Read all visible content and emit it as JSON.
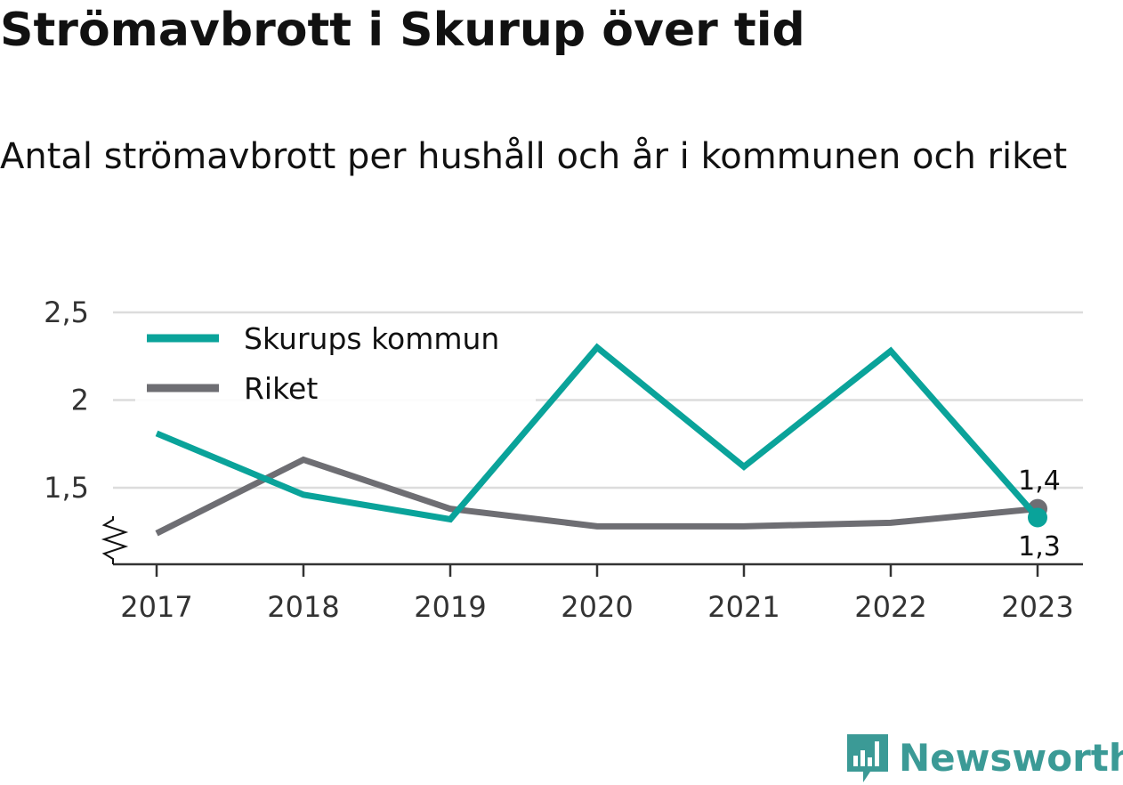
{
  "title": "Strömavbrott i Skurup över tid",
  "subtitle": "Antal strömavbrott per hushåll och år i kommunen och riket",
  "brand": {
    "name": "Newsworthy",
    "color": "#3b9a96",
    "icon": "bar-chart-speech-bubble-icon"
  },
  "chart_data": {
    "type": "line",
    "x": [
      "2017",
      "2018",
      "2019",
      "2020",
      "2021",
      "2022",
      "2023"
    ],
    "yticks": [
      "1,5",
      "2",
      "2,5"
    ],
    "ylim": [
      1.07,
      2.5
    ],
    "axis_break": true,
    "grid": "horizontal",
    "legend_position": "top-left",
    "series": [
      {
        "name": "Skurups kommun",
        "color": "#0aa39a",
        "values": [
          1.81,
          1.46,
          1.32,
          2.3,
          1.62,
          2.28,
          1.33
        ],
        "end_label": "1,3"
      },
      {
        "name": "Riket",
        "color": "#6e6e73",
        "values": [
          1.24,
          1.66,
          1.38,
          1.28,
          1.28,
          1.3,
          1.38
        ],
        "end_label": "1,4"
      }
    ]
  }
}
